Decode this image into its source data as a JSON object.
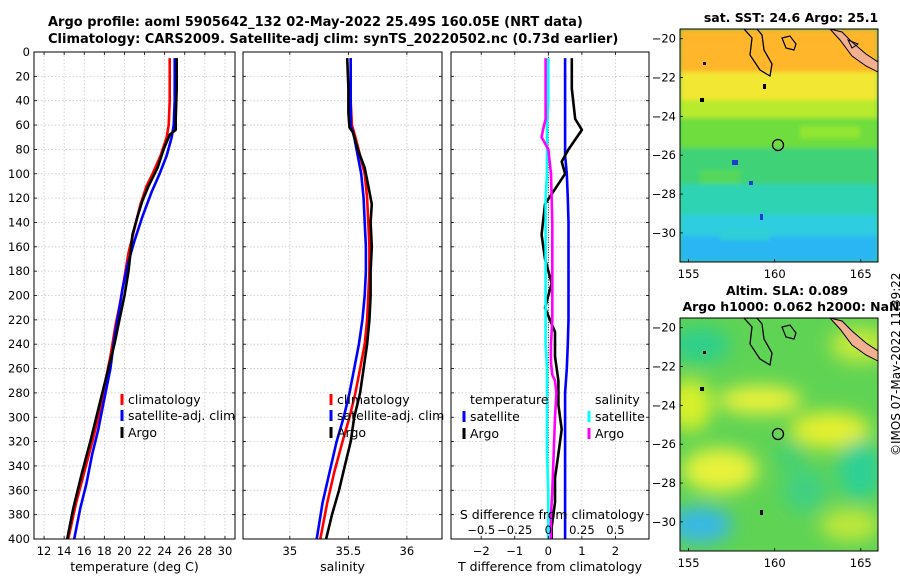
{
  "title_line1": "Argo profile: aoml 5905642_132 02-May-2022 25.49S 160.05E (NRT data)",
  "title_line2": "Climatology: CARS2009. Satellite-adj clim: synTS_20220502.nc (0.73d earlier)",
  "copyright": "©IMOS 07-May-2022 11:39:22",
  "colors": {
    "climatology": "#ff0000",
    "satellite": "#0000ff",
    "argo": "#000000",
    "satellite_s": "#00ffff",
    "argo_s": "#ff00ff"
  },
  "chart_data": [
    {
      "id": "temperature",
      "type": "line",
      "xlabel": "temperature (deg C)",
      "ylabel": "",
      "xlim": [
        11,
        31
      ],
      "ylim": [
        400,
        0
      ],
      "xticks": [
        12,
        14,
        16,
        18,
        20,
        22,
        24,
        26,
        28,
        30
      ],
      "yticks": [
        0,
        20,
        40,
        60,
        80,
        100,
        120,
        140,
        160,
        180,
        200,
        220,
        240,
        260,
        280,
        300,
        320,
        340,
        360,
        380,
        400
      ],
      "grid": true,
      "legend_position": "lower-right",
      "legend": [
        "climatology",
        "satellite-adj. clim",
        "Argo"
      ],
      "series": [
        {
          "name": "climatology",
          "color": "#ff0000",
          "x": [
            24.5,
            24.5,
            24.4,
            24.2,
            23.6,
            22.8,
            22.2,
            21.6,
            21.0,
            20.4,
            20.0,
            19.6,
            19.1,
            18.6,
            18.0,
            17.4,
            16.8,
            16.0,
            15.2,
            14.4
          ],
          "y": [
            5,
            40,
            60,
            70,
            85,
            100,
            110,
            125,
            145,
            165,
            185,
            205,
            225,
            250,
            275,
            300,
            320,
            345,
            370,
            400
          ]
        },
        {
          "name": "satellite-adj. clim",
          "color": "#0000ff",
          "x": [
            25.0,
            25.0,
            24.9,
            24.7,
            24.2,
            23.5,
            22.7,
            21.8,
            21.0,
            20.3,
            19.8,
            19.4,
            19.0,
            18.6,
            18.0,
            17.4,
            16.8,
            16.2,
            15.6,
            15.0
          ],
          "y": [
            5,
            40,
            60,
            70,
            85,
            100,
            115,
            135,
            155,
            175,
            195,
            215,
            235,
            260,
            285,
            310,
            330,
            355,
            375,
            400
          ]
        },
        {
          "name": "Argo",
          "color": "#000000",
          "x": [
            25.2,
            25.2,
            25.1,
            25.1,
            24.5,
            23.9,
            23.3,
            22.4,
            21.8,
            21.3,
            20.8,
            20.6,
            20.4,
            20.0,
            19.5,
            19.0,
            18.4,
            17.8,
            17.2,
            16.6,
            15.8,
            14.9,
            14.3
          ],
          "y": [
            5,
            30,
            55,
            64,
            68,
            80,
            95,
            110,
            122,
            135,
            150,
            165,
            180,
            200,
            220,
            240,
            260,
            280,
            300,
            320,
            345,
            375,
            400
          ]
        }
      ]
    },
    {
      "id": "salinity",
      "type": "line",
      "xlabel": "salinity",
      "ylabel": "",
      "xlim": [
        34.6,
        36.3
      ],
      "ylim": [
        400,
        0
      ],
      "xticks": [
        35,
        35.5,
        36
      ],
      "yticks": [
        0,
        20,
        40,
        60,
        80,
        100,
        120,
        140,
        160,
        180,
        200,
        220,
        240,
        260,
        280,
        300,
        320,
        340,
        360,
        380,
        400
      ],
      "grid": true,
      "legend_position": "lower-right",
      "legend": [
        "climatology",
        "satellite-adj. clim",
        "Argo"
      ],
      "series": [
        {
          "name": "climatology",
          "color": "#ff0000",
          "x": [
            35.52,
            35.52,
            35.53,
            35.56,
            35.6,
            35.64,
            35.66,
            35.67,
            35.68,
            35.68,
            35.67,
            35.66,
            35.64,
            35.6,
            35.56,
            35.51,
            35.45,
            35.38,
            35.32,
            35.26
          ],
          "y": [
            5,
            40,
            60,
            70,
            85,
            100,
            120,
            140,
            160,
            180,
            200,
            220,
            240,
            260,
            280,
            300,
            320,
            345,
            370,
            400
          ]
        },
        {
          "name": "satellite-adj. clim",
          "color": "#0000ff",
          "x": [
            35.52,
            35.52,
            35.52,
            35.55,
            35.58,
            35.61,
            35.63,
            35.64,
            35.65,
            35.65,
            35.64,
            35.62,
            35.59,
            35.55,
            35.51,
            35.46,
            35.4,
            35.34,
            35.28,
            35.23
          ],
          "y": [
            5,
            40,
            60,
            70,
            85,
            100,
            120,
            140,
            160,
            180,
            200,
            220,
            240,
            260,
            280,
            300,
            320,
            345,
            370,
            400
          ]
        },
        {
          "name": "Argo",
          "color": "#000000",
          "x": [
            35.49,
            35.5,
            35.5,
            35.51,
            35.54,
            35.58,
            35.64,
            35.67,
            35.7,
            35.69,
            35.7,
            35.69,
            35.69,
            35.68,
            35.66,
            35.63,
            35.6,
            35.55,
            35.52,
            35.47,
            35.42,
            35.36,
            35.31
          ],
          "y": [
            5,
            30,
            50,
            62,
            66,
            80,
            95,
            110,
            125,
            140,
            160,
            180,
            200,
            220,
            240,
            260,
            280,
            300,
            320,
            340,
            360,
            380,
            400
          ]
        }
      ]
    },
    {
      "id": "differences",
      "type": "line",
      "xlabel": "T difference from climatology",
      "xlabel_top": "S difference from climatology",
      "xlim": [
        -2.9,
        3.0
      ],
      "ylim": [
        400,
        0
      ],
      "xticks": [
        -2,
        -1,
        0,
        1,
        2
      ],
      "xticks_top": [
        -0.5,
        -0.25,
        0,
        0.25,
        0.5
      ],
      "xticklabels_top": [
        "-0.5",
        "-0.25",
        "0",
        "0.25",
        "0.5"
      ],
      "s_scale": 4,
      "yticks": [
        0,
        20,
        40,
        60,
        80,
        100,
        120,
        140,
        160,
        180,
        200,
        220,
        240,
        260,
        280,
        300,
        320,
        340,
        360,
        380,
        400
      ],
      "grid": true,
      "legend_position": "lower-center",
      "legend_headers": [
        "temperature",
        "salinity"
      ],
      "legend": [
        "satellite",
        "Argo",
        "satellite",
        "Argo"
      ],
      "series": [
        {
          "name": "temperature satellite",
          "color": "#0000ff",
          "units": "degC",
          "x": [
            0.5,
            0.5,
            0.5,
            0.5,
            0.5,
            0.55,
            0.58,
            0.6,
            0.6,
            0.6,
            0.6,
            0.6,
            0.58,
            0.55,
            0.5,
            0.5,
            0.5,
            0.5,
            0.5,
            0.5
          ],
          "y": [
            5,
            40,
            60,
            70,
            85,
            100,
            120,
            140,
            160,
            180,
            200,
            220,
            240,
            260,
            280,
            300,
            320,
            345,
            370,
            400
          ]
        },
        {
          "name": "temperature Argo",
          "color": "#000000",
          "units": "degC",
          "x": [
            0.7,
            0.7,
            0.8,
            1.0,
            0.6,
            0.4,
            0.5,
            -0.1,
            -0.2,
            -0.1,
            0.1,
            -0.1,
            0.2,
            0.2,
            0.3,
            0.3,
            0.4,
            0.3,
            0.2,
            0.2,
            0.1,
            0.1
          ],
          "y": [
            5,
            30,
            55,
            64,
            80,
            90,
            100,
            125,
            150,
            170,
            190,
            210,
            230,
            250,
            270,
            290,
            310,
            330,
            350,
            370,
            390,
            400
          ]
        },
        {
          "name": "salinity satellite",
          "color": "#00ffff",
          "units": "psu",
          "x": [
            0.0,
            0.0,
            -0.01,
            -0.01,
            -0.01,
            -0.02,
            -0.02,
            -0.02,
            -0.02,
            -0.02,
            -0.02,
            -0.02,
            -0.01,
            -0.01,
            -0.01,
            -0.01,
            0.0,
            0.0
          ],
          "y": [
            5,
            40,
            60,
            80,
            100,
            120,
            140,
            160,
            180,
            200,
            220,
            240,
            260,
            280,
            300,
            330,
            360,
            400
          ]
        },
        {
          "name": "salinity Argo",
          "color": "#ff00ff",
          "units": "psu",
          "x": [
            -0.02,
            -0.02,
            -0.02,
            -0.04,
            -0.05,
            0.0,
            0.02,
            0.03,
            0.03,
            0.03,
            0.02,
            0.02,
            0.03,
            0.05,
            0.06,
            0.05,
            0.04,
            0.03,
            0.02,
            0.02
          ],
          "y": [
            5,
            30,
            55,
            64,
            70,
            80,
            100,
            140,
            180,
            220,
            240,
            255,
            265,
            270,
            280,
            300,
            330,
            360,
            380,
            400
          ]
        }
      ]
    },
    {
      "id": "sst-map",
      "type": "heatmap",
      "title": "sat. SST: 24.6 Argo: 25.1",
      "xlim": [
        154.5,
        166
      ],
      "ylim": [
        -31.5,
        -19.5
      ],
      "xticks": [
        155,
        160,
        165
      ],
      "yticks": [
        -20,
        -22,
        -24,
        -26,
        -28,
        -30
      ],
      "profile_marker": {
        "lon": 160.05,
        "lat": -25.49
      },
      "field": "sea surface temperature, warm in north (orange) to cool in south (blue)"
    },
    {
      "id": "sla-map",
      "type": "heatmap",
      "title_line1": "Altim. SLA: 0.089",
      "title_line2": "Argo h1000: 0.062 h2000: NaN",
      "xlim": [
        154.5,
        166
      ],
      "ylim": [
        -31.5,
        -19.5
      ],
      "xticks": [
        155,
        160,
        165
      ],
      "yticks": [
        -20,
        -22,
        -24,
        -26,
        -28,
        -30
      ],
      "profile_marker": {
        "lon": 160.05,
        "lat": -25.49
      },
      "field": "sea level anomaly, green background with yellow and blue eddies"
    }
  ]
}
